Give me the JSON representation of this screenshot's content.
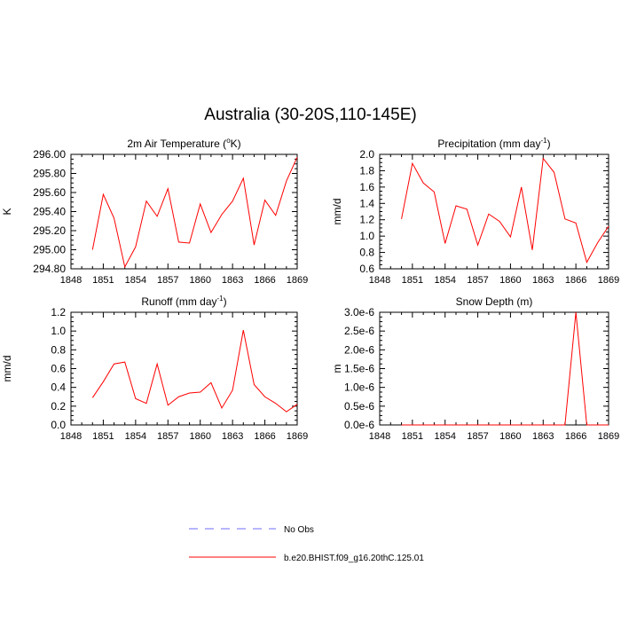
{
  "chart_data": {
    "title": "Australia (30-20S,110-145E)",
    "panels": [
      {
        "type": "line",
        "title_pre": "2m Air Temperature (",
        "title_sup": "o",
        "title_post": "K)",
        "ylabel": "K",
        "xlim": [
          1848,
          1869
        ],
        "ylim": [
          294.8,
          296.0
        ],
        "xticks": [
          "1848",
          "1851",
          "1854",
          "1857",
          "1860",
          "1863",
          "1866",
          "1869"
        ],
        "yticks": [
          "294.80",
          "295.00",
          "295.20",
          "295.40",
          "295.60",
          "295.80",
          "296.00"
        ],
        "x": [
          1850,
          1851,
          1852,
          1853,
          1854,
          1855,
          1856,
          1857,
          1858,
          1859,
          1860,
          1861,
          1862,
          1863,
          1864,
          1865,
          1866,
          1867,
          1868,
          1869
        ],
        "values": [
          295.0,
          295.58,
          295.33,
          294.82,
          295.03,
          295.51,
          295.35,
          295.64,
          295.08,
          295.07,
          295.48,
          295.18,
          295.37,
          295.51,
          295.75,
          295.05,
          295.52,
          295.36,
          295.72,
          295.97
        ]
      },
      {
        "type": "line",
        "title_pre": "Precipitation (mm day",
        "title_sup": "-1",
        "title_post": ")",
        "ylabel": "mm/d",
        "xlim": [
          1848,
          1869
        ],
        "ylim": [
          0.6,
          2.0
        ],
        "xticks": [
          "1848",
          "1851",
          "1854",
          "1857",
          "1860",
          "1863",
          "1866",
          "1869"
        ],
        "yticks": [
          "0.6",
          "0.8",
          "1.0",
          "1.2",
          "1.4",
          "1.6",
          "1.8",
          "2.0"
        ],
        "x": [
          1850,
          1851,
          1852,
          1853,
          1854,
          1855,
          1856,
          1857,
          1858,
          1859,
          1860,
          1861,
          1862,
          1863,
          1864,
          1865,
          1866,
          1867,
          1868,
          1869
        ],
        "values": [
          1.21,
          1.89,
          1.65,
          1.54,
          0.91,
          1.37,
          1.33,
          0.89,
          1.27,
          1.18,
          0.99,
          1.6,
          0.83,
          1.95,
          1.78,
          1.21,
          1.16,
          0.68,
          0.92,
          1.12
        ]
      },
      {
        "type": "line",
        "title_pre": "Runoff (mm day",
        "title_sup": "-1",
        "title_post": ")",
        "ylabel": "mm/d",
        "xlim": [
          1848,
          1869
        ],
        "ylim": [
          0.0,
          1.2
        ],
        "xticks": [
          "1848",
          "1851",
          "1854",
          "1857",
          "1860",
          "1863",
          "1866",
          "1869"
        ],
        "yticks": [
          "0.0",
          "0.2",
          "0.4",
          "0.6",
          "0.8",
          "1.0",
          "1.2"
        ],
        "x": [
          1850,
          1851,
          1852,
          1853,
          1854,
          1855,
          1856,
          1857,
          1858,
          1859,
          1860,
          1861,
          1862,
          1863,
          1864,
          1865,
          1866,
          1867,
          1868,
          1869
        ],
        "values": [
          0.29,
          0.46,
          0.65,
          0.67,
          0.28,
          0.23,
          0.65,
          0.21,
          0.3,
          0.34,
          0.35,
          0.45,
          0.18,
          0.37,
          1.01,
          0.43,
          0.3,
          0.23,
          0.14,
          0.22
        ]
      },
      {
        "type": "line",
        "title_pre": "Snow Depth (m)",
        "title_sup": "",
        "title_post": "",
        "ylabel": "m",
        "xlim": [
          1848,
          1869
        ],
        "ylim": [
          0.0,
          3e-06
        ],
        "xticks": [
          "1848",
          "1851",
          "1854",
          "1857",
          "1860",
          "1863",
          "1866",
          "1869"
        ],
        "yticks": [
          "0.0e-6",
          "0.5e-6",
          "1.0e-6",
          "1.5e-6",
          "2.0e-6",
          "2.5e-6",
          "3.0e-6"
        ],
        "x": [
          1850,
          1851,
          1852,
          1853,
          1854,
          1855,
          1856,
          1857,
          1858,
          1859,
          1860,
          1861,
          1862,
          1863,
          1864,
          1865,
          1866,
          1867,
          1868,
          1869
        ],
        "values": [
          0,
          0,
          0,
          0,
          0,
          0,
          0,
          0,
          0,
          0,
          0,
          0,
          0,
          0,
          0,
          0,
          3e-06,
          0,
          0,
          0
        ]
      }
    ],
    "legend": [
      {
        "name": "No Obs",
        "color": "#6d6dff",
        "dashed": true
      },
      {
        "name": "b.e20.BHIST.f09_g16.20thC.125.01",
        "color": "#ff0000",
        "dashed": false
      }
    ],
    "line_color": "#ff0000"
  }
}
